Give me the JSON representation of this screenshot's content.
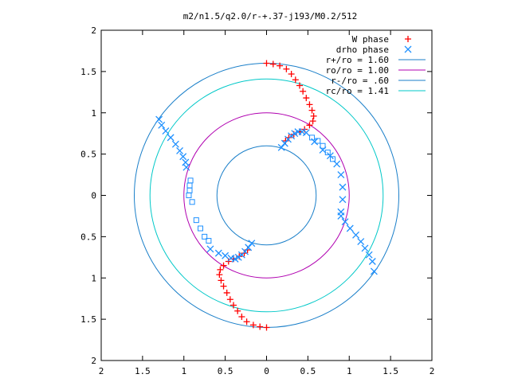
{
  "chart_data": {
    "type": "scatter",
    "title": "m2/n1.5/q2.0/r-+.37-j193/M0.2/512",
    "xlabel": "",
    "ylabel": "",
    "xlim": [
      -2,
      2
    ],
    "ylim": [
      -2,
      2
    ],
    "x_ticks": [
      -2,
      -1.5,
      -1,
      -0.5,
      0,
      0.5,
      1,
      1.5,
      2
    ],
    "y_ticks": [
      -2,
      -1.5,
      -1,
      -0.5,
      0,
      0.5,
      1,
      1.5,
      2
    ],
    "x_tick_labels": [
      "2",
      "1.5",
      "1",
      "0.5",
      "0",
      "0.5",
      "1",
      "1.5",
      "2"
    ],
    "y_tick_labels": [
      "2",
      "1.5",
      "1",
      "0.5",
      "0",
      "0.5",
      "1",
      "1.5",
      "2"
    ],
    "grid": false,
    "legend_position": "top-right",
    "legend": [
      {
        "label": "W phase",
        "marker": "plus",
        "color": "#ff0000"
      },
      {
        "label": "drho phase",
        "marker": "cross",
        "color": "#1e90ff"
      },
      {
        "label": "r+/ro = 1.60",
        "marker": "line",
        "color": "#1a7fc9"
      },
      {
        "label": "ro/ro = 1.00",
        "marker": "line",
        "color": "#b000b0"
      },
      {
        "label": "r-/ro = .60",
        "marker": "line",
        "color": "#1a7fc9"
      },
      {
        "label": "rc/ro = 1.41",
        "marker": "line",
        "color": "#00c8c8"
      }
    ],
    "circles": [
      {
        "r": 1.6,
        "color": "#1a7fc9"
      },
      {
        "r": 1.0,
        "color": "#b000b0"
      },
      {
        "r": 0.6,
        "color": "#1a7fc9"
      },
      {
        "r": 1.41,
        "color": "#00c8c8"
      }
    ],
    "series": [
      {
        "name": "W phase",
        "marker": "plus",
        "color": "#ff0000",
        "points": [
          [
            0.0,
            1.6
          ],
          [
            0.08,
            1.59
          ],
          [
            0.16,
            1.57
          ],
          [
            0.24,
            1.53
          ],
          [
            0.3,
            1.47
          ],
          [
            0.35,
            1.4
          ],
          [
            0.4,
            1.33
          ],
          [
            0.44,
            1.26
          ],
          [
            0.48,
            1.18
          ],
          [
            0.52,
            1.1
          ],
          [
            0.55,
            1.03
          ],
          [
            0.57,
            0.96
          ],
          [
            0.56,
            0.9
          ],
          [
            0.52,
            0.85
          ],
          [
            0.46,
            0.8
          ],
          [
            0.4,
            0.77
          ],
          [
            0.33,
            0.74
          ],
          [
            0.27,
            0.7
          ],
          [
            0.23,
            0.66
          ],
          [
            0.0,
            -1.6
          ],
          [
            -0.08,
            -1.59
          ],
          [
            -0.16,
            -1.57
          ],
          [
            -0.24,
            -1.53
          ],
          [
            -0.3,
            -1.47
          ],
          [
            -0.35,
            -1.4
          ],
          [
            -0.4,
            -1.33
          ],
          [
            -0.44,
            -1.26
          ],
          [
            -0.48,
            -1.18
          ],
          [
            -0.52,
            -1.1
          ],
          [
            -0.55,
            -1.03
          ],
          [
            -0.57,
            -0.96
          ],
          [
            -0.56,
            -0.9
          ],
          [
            -0.52,
            -0.85
          ],
          [
            -0.46,
            -0.8
          ],
          [
            -0.4,
            -0.77
          ],
          [
            -0.33,
            -0.74
          ],
          [
            -0.27,
            -0.7
          ],
          [
            -0.23,
            -0.66
          ]
        ]
      },
      {
        "name": "drho phase",
        "marker": "cross",
        "color": "#1e90ff",
        "points": [
          [
            -1.3,
            0.92
          ],
          [
            -1.27,
            0.85
          ],
          [
            -1.22,
            0.78
          ],
          [
            -1.16,
            0.7
          ],
          [
            -1.1,
            0.62
          ],
          [
            -1.05,
            0.54
          ],
          [
            -1.01,
            0.47
          ],
          [
            -0.98,
            0.4
          ],
          [
            -0.97,
            0.34
          ],
          [
            0.18,
            0.58
          ],
          [
            0.22,
            0.63
          ],
          [
            0.26,
            0.68
          ],
          [
            0.3,
            0.72
          ],
          [
            0.34,
            0.75
          ],
          [
            0.38,
            0.77
          ],
          [
            0.43,
            0.77
          ],
          [
            0.48,
            0.76
          ],
          [
            0.58,
            0.65
          ],
          [
            0.68,
            0.55
          ],
          [
            0.77,
            0.48
          ],
          [
            0.85,
            0.38
          ],
          [
            0.9,
            0.25
          ],
          [
            0.92,
            0.1
          ],
          [
            0.92,
            -0.05
          ],
          [
            0.9,
            -0.2
          ],
          [
            0.9,
            -0.25
          ],
          [
            0.95,
            -0.32
          ],
          [
            1.01,
            -0.4
          ],
          [
            1.08,
            -0.48
          ],
          [
            1.14,
            -0.56
          ],
          [
            1.19,
            -0.64
          ],
          [
            1.24,
            -0.72
          ],
          [
            1.28,
            -0.8
          ],
          [
            1.3,
            -0.92
          ],
          [
            -0.18,
            -0.58
          ],
          [
            -0.22,
            -0.63
          ],
          [
            -0.26,
            -0.68
          ],
          [
            -0.3,
            -0.72
          ],
          [
            -0.34,
            -0.75
          ],
          [
            -0.38,
            -0.77
          ],
          [
            -0.43,
            -0.76
          ],
          [
            -0.5,
            -0.73
          ],
          [
            -0.58,
            -0.7
          ],
          [
            -0.68,
            -0.65
          ]
        ]
      },
      {
        "name": "",
        "marker": "square",
        "color": "#1e90ff",
        "points": [
          [
            -0.92,
            0.18
          ],
          [
            -0.93,
            0.12
          ],
          [
            -0.93,
            0.06
          ],
          [
            -0.94,
            0.0
          ],
          [
            -0.9,
            -0.08
          ],
          [
            -0.85,
            -0.3
          ],
          [
            -0.8,
            -0.4
          ],
          [
            -0.75,
            -0.5
          ],
          [
            -0.7,
            -0.55
          ],
          [
            0.55,
            0.7
          ],
          [
            0.62,
            0.66
          ],
          [
            0.68,
            0.6
          ],
          [
            0.74,
            0.52
          ],
          [
            0.8,
            0.44
          ]
        ]
      }
    ]
  }
}
